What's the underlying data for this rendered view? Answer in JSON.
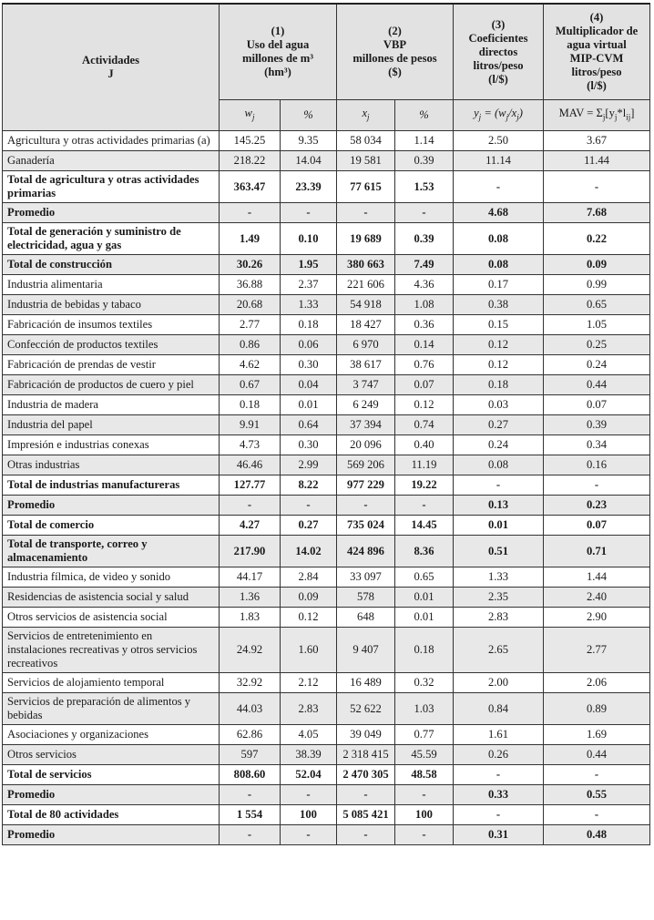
{
  "header": {
    "activities": [
      "Actividades",
      "J"
    ],
    "col1": [
      "(1)",
      "Uso del agua",
      "millones de m³",
      "(hm³)"
    ],
    "col2": [
      "(2)",
      "VBP",
      "millones de pesos",
      "($)"
    ],
    "col3": [
      "(3)",
      "Coeficientes",
      "directos",
      "litros/peso",
      "(l/$)"
    ],
    "col4": [
      "(4)",
      "Multiplicador de",
      "agua virtual",
      "MIP-CVM",
      "litros/peso",
      "(l/$)"
    ],
    "sub": {
      "wj": [
        [
          "w",
          ""
        ],
        [
          "",
          "j"
        ]
      ],
      "pct1": "%",
      "xj": [
        [
          "x",
          ""
        ],
        [
          "",
          "j"
        ]
      ],
      "pct2": "%",
      "yj": [
        [
          "y",
          ""
        ],
        [
          "",
          "j"
        ],
        [
          " = (w",
          ""
        ],
        [
          "",
          "j"
        ],
        [
          "/x",
          ""
        ],
        [
          "",
          "j"
        ],
        [
          ")",
          ""
        ]
      ],
      "mav": [
        [
          "MAV = Σ",
          ""
        ],
        [
          "",
          "j"
        ],
        [
          "[y",
          ""
        ],
        [
          "",
          "j"
        ],
        [
          "*l",
          ""
        ],
        [
          "",
          "ij"
        ],
        [
          "]",
          ""
        ]
      ]
    }
  },
  "rows": [
    {
      "label": "Agricultura y otras actividades primarias (a)",
      "values": [
        "145.25",
        "9.35",
        "58 034",
        "1.14",
        "2.50",
        "3.67"
      ],
      "bold": false
    },
    {
      "label": "Ganadería",
      "values": [
        "218.22",
        "14.04",
        "19 581",
        "0.39",
        "11.14",
        "11.44"
      ],
      "bold": false
    },
    {
      "label": "Total de agricultura y otras actividades primarias",
      "values": [
        "363.47",
        "23.39",
        "77 615",
        "1.53",
        "-",
        "-"
      ],
      "bold": true
    },
    {
      "label": "Promedio",
      "values": [
        "-",
        "-",
        "-",
        "-",
        "4.68",
        "7.68"
      ],
      "bold": true
    },
    {
      "label": "Total de generación y suministro de electricidad, agua y gas",
      "values": [
        "1.49",
        "0.10",
        "19 689",
        "0.39",
        "0.08",
        "0.22"
      ],
      "bold": true
    },
    {
      "label": "Total de construcción",
      "values": [
        "30.26",
        "1.95",
        "380 663",
        "7.49",
        "0.08",
        "0.09"
      ],
      "bold": true
    },
    {
      "label": "Industria alimentaria",
      "values": [
        "36.88",
        "2.37",
        "221 606",
        "4.36",
        "0.17",
        "0.99"
      ],
      "bold": false
    },
    {
      "label": "Industria de bebidas y tabaco",
      "values": [
        "20.68",
        "1.33",
        "54 918",
        "1.08",
        "0.38",
        "0.65"
      ],
      "bold": false
    },
    {
      "label": "Fabricación de insumos textiles",
      "values": [
        "2.77",
        "0.18",
        "18 427",
        "0.36",
        "0.15",
        "1.05"
      ],
      "bold": false
    },
    {
      "label": "Confección de productos textiles",
      "values": [
        "0.86",
        "0.06",
        "6 970",
        "0.14",
        "0.12",
        "0.25"
      ],
      "bold": false
    },
    {
      "label": "Fabricación de prendas de vestir",
      "values": [
        "4.62",
        "0.30",
        "38 617",
        "0.76",
        "0.12",
        "0.24"
      ],
      "bold": false
    },
    {
      "label": "Fabricación de productos de cuero y piel",
      "values": [
        "0.67",
        "0.04",
        "3 747",
        "0.07",
        "0.18",
        "0.44"
      ],
      "bold": false
    },
    {
      "label": "Industria de madera",
      "values": [
        "0.18",
        "0.01",
        "6 249",
        "0.12",
        "0.03",
        "0.07"
      ],
      "bold": false
    },
    {
      "label": "Industria del papel",
      "values": [
        "9.91",
        "0.64",
        "37 394",
        "0.74",
        "0.27",
        "0.39"
      ],
      "bold": false
    },
    {
      "label": "Impresión e industrias conexas",
      "values": [
        "4.73",
        "0.30",
        "20 096",
        "0.40",
        "0.24",
        "0.34"
      ],
      "bold": false
    },
    {
      "label": "Otras industrias",
      "values": [
        "46.46",
        "2.99",
        "569 206",
        "11.19",
        "0.08",
        "0.16"
      ],
      "bold": false
    },
    {
      "label": "Total de industrias manufactureras",
      "values": [
        "127.77",
        "8.22",
        "977 229",
        "19.22",
        "-",
        "-"
      ],
      "bold": true
    },
    {
      "label": "Promedio",
      "values": [
        "-",
        "-",
        "-",
        "-",
        "0.13",
        "0.23"
      ],
      "bold": true
    },
    {
      "label": "Total de comercio",
      "values": [
        "4.27",
        "0.27",
        "735 024",
        "14.45",
        "0.01",
        "0.07"
      ],
      "bold": true
    },
    {
      "label": "Total de transporte, correo y almacenamiento",
      "values": [
        "217.90",
        "14.02",
        "424 896",
        "8.36",
        "0.51",
        "0.71"
      ],
      "bold": true
    },
    {
      "label": "Industria fílmica, de video y sonido",
      "values": [
        "44.17",
        "2.84",
        "33 097",
        "0.65",
        "1.33",
        "1.44"
      ],
      "bold": false
    },
    {
      "label": "Residencias de asistencia social y salud",
      "values": [
        "1.36",
        "0.09",
        "578",
        "0.01",
        "2.35",
        "2.40"
      ],
      "bold": false
    },
    {
      "label": "Otros servicios de asistencia social",
      "values": [
        "1.83",
        "0.12",
        "648",
        "0.01",
        "2.83",
        "2.90"
      ],
      "bold": false
    },
    {
      "label": "Servicios de entretenimiento en instalaciones recreativas y otros servicios recreativos",
      "values": [
        "24.92",
        "1.60",
        "9 407",
        "0.18",
        "2.65",
        "2.77"
      ],
      "bold": false
    },
    {
      "label": "Servicios de alojamiento temporal",
      "values": [
        "32.92",
        "2.12",
        "16 489",
        "0.32",
        "2.00",
        "2.06"
      ],
      "bold": false
    },
    {
      "label": "Servicios de preparación de alimentos y bebidas",
      "values": [
        "44.03",
        "2.83",
        "52 622",
        "1.03",
        "0.84",
        "0.89"
      ],
      "bold": false
    },
    {
      "label": "Asociaciones y organizaciones",
      "values": [
        "62.86",
        "4.05",
        "39 049",
        "0.77",
        "1.61",
        "1.69"
      ],
      "bold": false
    },
    {
      "label": "Otros servicios",
      "values": [
        "597",
        "38.39",
        "2 318 415",
        "45.59",
        "0.26",
        "0.44"
      ],
      "bold": false
    },
    {
      "label": "Total de servicios",
      "values": [
        "808.60",
        "52.04",
        "2 470 305",
        "48.58",
        "-",
        "-"
      ],
      "bold": true
    },
    {
      "label": "Promedio",
      "values": [
        "-",
        "-",
        "-",
        "-",
        "0.33",
        "0.55"
      ],
      "bold": true
    },
    {
      "label": "Total de 80 actividades",
      "values": [
        "1 554",
        "100",
        "5 085 421",
        "100",
        "-",
        "-"
      ],
      "bold": true
    },
    {
      "label": "Promedio",
      "values": [
        "-",
        "-",
        "-",
        "-",
        "0.31",
        "0.48"
      ],
      "bold": true
    }
  ],
  "colors": {
    "header_bg": "#e2e2e2",
    "stripe_bg": "#e8e8e8",
    "border": "#333333"
  }
}
